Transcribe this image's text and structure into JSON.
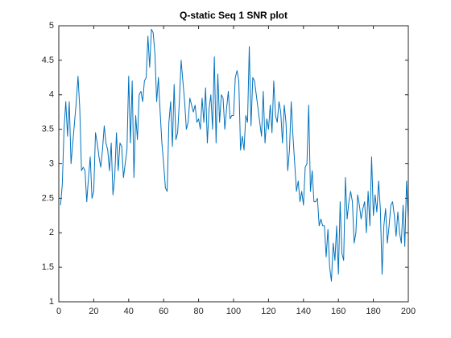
{
  "chart_data": {
    "type": "line",
    "title": "Q-static Seq 1 SNR plot",
    "color": "#0072bd",
    "x": [
      1,
      2,
      3,
      4,
      5,
      6,
      7,
      8,
      9,
      10,
      11,
      12,
      13,
      14,
      15,
      16,
      17,
      18,
      19,
      20,
      21,
      22,
      23,
      24,
      25,
      26,
      27,
      28,
      29,
      30,
      31,
      32,
      33,
      34,
      35,
      36,
      37,
      38,
      39,
      40,
      41,
      42,
      43,
      44,
      45,
      46,
      47,
      48,
      49,
      50,
      51,
      52,
      53,
      54,
      55,
      56,
      57,
      58,
      59,
      60,
      61,
      62,
      63,
      64,
      65,
      66,
      67,
      68,
      69,
      70,
      71,
      72,
      73,
      74,
      75,
      76,
      77,
      78,
      79,
      80,
      81,
      82,
      83,
      84,
      85,
      86,
      87,
      88,
      89,
      90,
      91,
      92,
      93,
      94,
      95,
      96,
      97,
      98,
      99,
      100,
      101,
      102,
      103,
      104,
      105,
      106,
      107,
      108,
      109,
      110,
      111,
      112,
      113,
      114,
      115,
      116,
      117,
      118,
      119,
      120,
      121,
      122,
      123,
      124,
      125,
      126,
      127,
      128,
      129,
      130,
      131,
      132,
      133,
      134,
      135,
      136,
      137,
      138,
      139,
      140,
      141,
      142,
      143,
      144,
      145,
      146,
      147,
      148,
      149,
      150,
      151,
      152,
      153,
      154,
      155,
      156,
      157,
      158,
      159,
      160,
      161,
      162,
      163,
      164,
      165,
      166,
      167,
      168,
      169,
      170,
      171,
      172,
      173,
      174,
      175,
      176,
      177,
      178,
      179,
      180,
      181,
      182,
      183,
      184,
      185,
      186,
      187,
      188,
      189,
      190,
      191,
      192,
      193,
      194,
      195,
      196,
      197,
      198,
      199,
      200
    ],
    "values": [
      2.4,
      2.7,
      3.5,
      3.9,
      3.4,
      3.9,
      3.0,
      3.3,
      3.6,
      3.9,
      4.27,
      3.8,
      2.9,
      2.95,
      2.9,
      2.45,
      2.8,
      3.1,
      2.5,
      2.6,
      3.45,
      3.3,
      3.1,
      2.95,
      3.2,
      3.55,
      3.3,
      3.2,
      2.9,
      3.3,
      2.55,
      2.8,
      3.45,
      2.9,
      3.3,
      3.25,
      2.8,
      3.0,
      3.2,
      4.27,
      3.3,
      4.2,
      2.8,
      3.7,
      3.35,
      4.0,
      4.05,
      3.9,
      4.2,
      4.25,
      4.85,
      4.4,
      4.95,
      4.9,
      4.6,
      3.9,
      4.25,
      3.75,
      3.3,
      3.0,
      2.65,
      2.6,
      3.6,
      3.9,
      3.25,
      4.15,
      3.35,
      3.45,
      3.9,
      4.5,
      4.2,
      3.9,
      3.5,
      3.6,
      3.95,
      3.85,
      3.75,
      3.85,
      3.6,
      3.65,
      3.5,
      3.95,
      3.6,
      4.1,
      3.3,
      3.8,
      4.0,
      3.5,
      4.55,
      3.3,
      4.3,
      3.6,
      4.0,
      3.95,
      3.5,
      3.8,
      4.05,
      3.65,
      3.7,
      3.7,
      4.25,
      4.35,
      4.2,
      3.2,
      3.4,
      3.2,
      3.7,
      3.6,
      4.7,
      3.55,
      4.25,
      4.2,
      4.0,
      3.8,
      3.6,
      3.4,
      4.05,
      3.3,
      3.65,
      3.5,
      3.85,
      3.45,
      4.2,
      3.7,
      3.6,
      3.9,
      3.75,
      3.3,
      3.85,
      3.6,
      2.9,
      3.2,
      3.9,
      3.4,
      3.0,
      2.6,
      2.75,
      2.45,
      2.6,
      2.4,
      2.95,
      3.0,
      3.85,
      2.6,
      2.9,
      2.45,
      2.45,
      2.5,
      2.1,
      2.2,
      2.1,
      2.1,
      1.65,
      2.05,
      1.5,
      1.3,
      1.85,
      1.6,
      2.1,
      1.4,
      2.45,
      1.7,
      1.6,
      2.8,
      2.2,
      2.45,
      2.6,
      2.45,
      1.85,
      2.0,
      2.55,
      2.4,
      2.2,
      2.35,
      2.45,
      2.0,
      2.6,
      2.1,
      3.1,
      2.25,
      2.55,
      2.3,
      2.75,
      2.35,
      1.4,
      2.1,
      2.35,
      1.85,
      2.1,
      2.4,
      2.45,
      2.25,
      1.95,
      2.3,
      2.0,
      1.85,
      2.4,
      1.8,
      2.75,
      2.2
    ],
    "xlim": [
      0,
      200
    ],
    "xticks": [
      0,
      20,
      40,
      60,
      80,
      100,
      120,
      140,
      160,
      180,
      200
    ],
    "ylim": [
      1,
      5
    ],
    "yticks": [
      1,
      1.5,
      2,
      2.5,
      3,
      3.5,
      4,
      4.5,
      5
    ]
  }
}
